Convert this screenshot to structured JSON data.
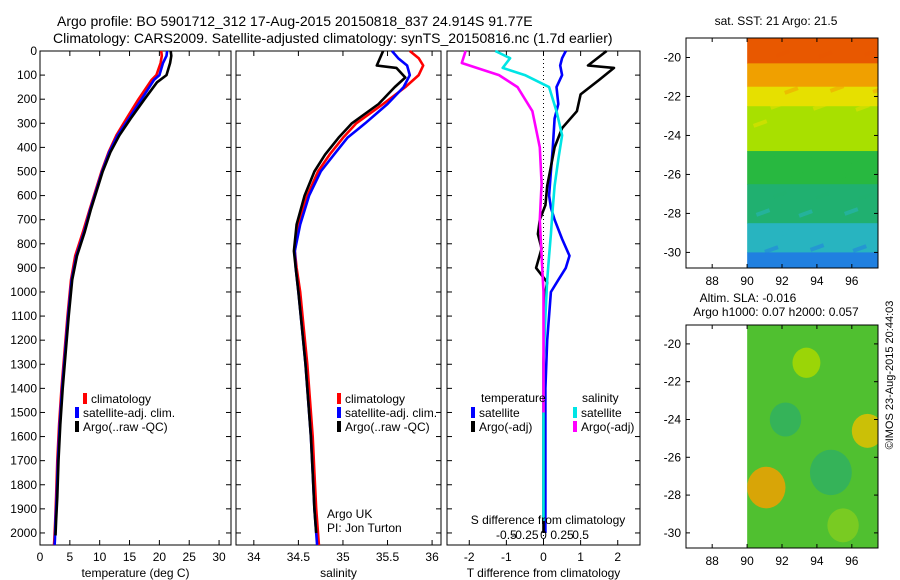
{
  "header": {
    "line1": "Argo profile: BO 5901712_312 17-Aug-2015 20150818_837 24.914S 91.77E",
    "line2": "Climatology: CARS2009. Satellite-adjusted climatology: synTS_20150816.nc (1.7d earlier)"
  },
  "colors": {
    "climatology": "#ff0000",
    "satellite": "#0000ff",
    "argo": "#000000",
    "sat_salinity": "#00e5e5",
    "argo_salinity": "#ff00ff"
  },
  "footer": {
    "credit": "©IMOS 23-Aug-2015 20:44:03"
  },
  "chart_data": [
    {
      "type": "line",
      "name": "temperature-profile",
      "xlabel": "temperature (deg C)",
      "ylabel": "",
      "xlim": [
        0,
        32
      ],
      "ylim": [
        2050,
        0
      ],
      "xticks": [
        "0",
        "5",
        "10",
        "15",
        "20",
        "25",
        "30"
      ],
      "yticks": [
        "0",
        "100",
        "200",
        "300",
        "400",
        "500",
        "600",
        "700",
        "800",
        "900",
        "1000",
        "1100",
        "1200",
        "1300",
        "1400",
        "1500",
        "1600",
        "1700",
        "1800",
        "1900",
        "2000"
      ],
      "legend": [
        "climatology",
        "satellite-adj. clim.",
        "Argo(..raw -QC)"
      ],
      "series": [
        {
          "name": "climatology",
          "color": "#ff0000",
          "x": [
            20.3,
            20.4,
            20.2,
            19.5,
            18.7,
            16.5,
            14.5,
            12.8,
            11.5,
            10.3,
            9.3,
            8.3,
            7.2,
            5.9,
            5.2,
            4.6,
            4.1,
            3.6,
            3.2,
            2.9,
            2.7,
            2.55,
            2.4,
            2.35
          ],
          "y": [
            0,
            20,
            50,
            100,
            120,
            200,
            280,
            350,
            420,
            500,
            580,
            660,
            750,
            850,
            950,
            1100,
            1250,
            1400,
            1550,
            1700,
            1850,
            1950,
            2030,
            2050
          ]
        },
        {
          "name": "satellite-adj. clim.",
          "color": "#0000ff",
          "x": [
            21.3,
            21.2,
            20.6,
            20.0,
            19.1,
            17.0,
            14.9,
            13.0,
            11.6,
            10.4,
            9.4,
            8.4,
            7.4,
            6.1,
            5.3,
            4.7,
            4.2,
            3.7,
            3.3,
            3.0,
            2.8,
            2.6,
            2.5,
            2.45
          ],
          "y": [
            0,
            20,
            50,
            100,
            120,
            200,
            280,
            350,
            420,
            500,
            580,
            660,
            750,
            850,
            950,
            1100,
            1250,
            1400,
            1550,
            1700,
            1850,
            1950,
            2030,
            2050
          ]
        },
        {
          "name": "Argo(..raw -QC)",
          "color": "#000000",
          "x": [
            21.9,
            22.0,
            21.8,
            21.2,
            19.6,
            17.5,
            15.2,
            13.3,
            11.8,
            10.5,
            9.5,
            8.5,
            7.5,
            6.2,
            5.4,
            4.8,
            4.3,
            3.8,
            3.4,
            3.1,
            2.9,
            2.7,
            2.6
          ],
          "y": [
            0,
            20,
            50,
            100,
            130,
            200,
            280,
            350,
            420,
            500,
            580,
            660,
            750,
            850,
            950,
            1100,
            1250,
            1400,
            1550,
            1700,
            1850,
            1950,
            2010
          ]
        }
      ]
    },
    {
      "type": "line",
      "name": "salinity-profile",
      "xlabel": "salinity",
      "xlim": [
        33.8,
        36.1
      ],
      "ylim": [
        2050,
        0
      ],
      "xticks": [
        "34",
        "34.5",
        "35",
        "35.5",
        "36"
      ],
      "legend": [
        "climatology",
        "satellite-adj. clim.",
        "Argo(..raw -QC)"
      ],
      "annotation": [
        "Argo UK",
        "PI: Jon Turton"
      ],
      "series": [
        {
          "name": "climatology",
          "color": "#ff0000",
          "x": [
            35.75,
            35.85,
            35.9,
            35.85,
            35.7,
            35.45,
            35.15,
            35.0,
            34.85,
            34.72,
            34.6,
            34.5,
            34.46,
            34.48,
            34.52,
            34.56,
            34.6,
            34.63,
            34.66,
            34.68,
            34.7,
            34.72,
            34.73
          ],
          "y": [
            0,
            30,
            60,
            100,
            150,
            220,
            300,
            360,
            430,
            500,
            600,
            720,
            830,
            900,
            1000,
            1150,
            1300,
            1450,
            1600,
            1750,
            1900,
            2000,
            2050
          ]
        },
        {
          "name": "satellite-adj. clim.",
          "color": "#0000ff",
          "x": [
            35.55,
            35.62,
            35.72,
            35.75,
            35.68,
            35.5,
            35.25,
            35.05,
            34.9,
            34.75,
            34.62,
            34.52,
            34.46,
            34.47,
            34.5,
            34.54,
            34.58,
            34.61,
            34.64,
            34.66,
            34.68,
            34.7,
            34.71
          ],
          "y": [
            0,
            30,
            60,
            100,
            150,
            220,
            300,
            360,
            430,
            500,
            600,
            720,
            830,
            900,
            1000,
            1150,
            1300,
            1450,
            1600,
            1750,
            1900,
            2000,
            2050
          ]
        },
        {
          "name": "Argo(..raw -QC)",
          "color": "#000000",
          "x": [
            35.45,
            35.38,
            35.6,
            35.7,
            35.58,
            35.4,
            35.1,
            34.95,
            34.8,
            34.68,
            34.57,
            34.48,
            34.45,
            34.47,
            34.5,
            34.54,
            34.58,
            34.61,
            34.64,
            34.66,
            34.68,
            34.7
          ],
          "y": [
            0,
            60,
            70,
            110,
            150,
            220,
            300,
            360,
            430,
            500,
            600,
            720,
            830,
            900,
            1000,
            1150,
            1300,
            1450,
            1600,
            1750,
            1900,
            2000
          ]
        }
      ]
    },
    {
      "type": "line",
      "name": "difference-profile",
      "xlabel": "T difference from climatology",
      "xlabel2": "S difference from climatology",
      "xlim": [
        -2.6,
        2.6
      ],
      "ylim": [
        2050,
        0
      ],
      "xticks": [
        "-2",
        "-1",
        "0",
        "1",
        "2"
      ],
      "xticks_salinity": [
        "-0.5",
        "-0.25",
        "0",
        "0.25",
        "0.5"
      ],
      "legend_titles": [
        "temperature",
        "salinity"
      ],
      "legend": [
        "satellite",
        "Argo(-adj)",
        "satellite",
        "Argo(-adj)"
      ],
      "series": [
        {
          "name": "T satellite",
          "color": "#0000ff",
          "x": [
            0.6,
            0.5,
            0.45,
            0.5,
            0.35,
            0.4,
            0.3,
            0.25,
            0.2,
            0.15,
            0.2,
            0.3,
            0.5,
            0.7,
            0.6,
            0.4,
            0.2,
            0.1,
            0.05,
            0.05,
            0.05,
            0.05
          ],
          "y": [
            0,
            30,
            60,
            100,
            150,
            220,
            280,
            400,
            500,
            600,
            650,
            700,
            780,
            850,
            900,
            950,
            1000,
            1200,
            1400,
            1600,
            1800,
            2000
          ]
        },
        {
          "name": "T Argo(-adj)",
          "color": "#000000",
          "x": [
            1.7,
            1.2,
            1.9,
            1.5,
            1.0,
            0.9,
            0.5,
            0.3,
            0.2,
            0.1,
            0.05,
            -0.1,
            -0.15,
            -0.05,
            -0.2,
            0.1,
            0.05,
            0.0,
            0.0,
            0.0
          ],
          "y": [
            0,
            60,
            70,
            120,
            180,
            250,
            320,
            400,
            480,
            560,
            640,
            700,
            760,
            820,
            900,
            960,
            1000,
            1300,
            1600,
            2000
          ]
        },
        {
          "name": "S satellite",
          "color": "#00e5e5",
          "x": [
            -1.3,
            -0.9,
            -1.1,
            -0.5,
            0.15,
            0.35,
            0.5,
            0.4,
            0.3,
            0.25,
            0.2,
            0.15,
            0.1,
            0.05,
            0.0,
            0.0,
            0.0
          ],
          "y": [
            0,
            30,
            70,
            100,
            150,
            250,
            350,
            450,
            560,
            650,
            760,
            850,
            950,
            1100,
            1300,
            1600,
            1950
          ]
        },
        {
          "name": "S Argo(-adj)",
          "color": "#ff00ff",
          "x": [
            -2.1,
            -2.2,
            -1.8,
            -1.2,
            -0.7,
            -0.3,
            -0.1,
            -0.05,
            -0.1,
            -0.05,
            0.0,
            0.0,
            0.0
          ],
          "y": [
            0,
            50,
            70,
            100,
            150,
            250,
            400,
            550,
            700,
            850,
            1000,
            1200,
            1500
          ]
        }
      ]
    },
    {
      "type": "heatmap",
      "name": "sst-map",
      "title": "sat. SST: 21 Argo: 21.5",
      "xlim": [
        86.5,
        97.5
      ],
      "ylim": [
        -30.8,
        -19
      ],
      "xticks": [
        "88",
        "90",
        "92",
        "94",
        "96"
      ],
      "yticks": [
        "-20",
        "-22",
        "-24",
        "-26",
        "-28",
        "-30"
      ],
      "data_lon_start": 90,
      "bands": [
        {
          "lat_top": -19.0,
          "lat_bottom": -20.3,
          "color": "#e85800"
        },
        {
          "lat_top": -20.3,
          "lat_bottom": -21.5,
          "color": "#f0a000"
        },
        {
          "lat_top": -21.5,
          "lat_bottom": -22.5,
          "color": "#e6e000"
        },
        {
          "lat_top": -22.5,
          "lat_bottom": -24.8,
          "color": "#a8e000"
        },
        {
          "lat_top": -24.8,
          "lat_bottom": -26.5,
          "color": "#28b840"
        },
        {
          "lat_top": -26.5,
          "lat_bottom": -28.5,
          "color": "#20b070"
        },
        {
          "lat_top": -28.5,
          "lat_bottom": -30.0,
          "color": "#28b4c0"
        },
        {
          "lat_top": -30.0,
          "lat_bottom": -30.8,
          "color": "#2080e0"
        }
      ]
    },
    {
      "type": "heatmap",
      "name": "sla-map",
      "title": "Altim. SLA: -0.016",
      "subtitle": "Argo h1000: 0.07 h2000: 0.057",
      "xlim": [
        86.5,
        97.5
      ],
      "ylim": [
        -30.8,
        -19
      ],
      "xticks": [
        "88",
        "90",
        "92",
        "94",
        "96"
      ],
      "yticks": [
        "-20",
        "-22",
        "-24",
        "-26",
        "-28",
        "-30"
      ],
      "data_lon_start": 90,
      "background": "#50c030",
      "blobs": [
        {
          "lon": 91.1,
          "lat": -27.6,
          "r": 1.1,
          "color": "#f0a000"
        },
        {
          "lon": 96.9,
          "lat": -24.6,
          "r": 0.9,
          "color": "#e0c000"
        },
        {
          "lon": 93.4,
          "lat": -21.0,
          "r": 0.8,
          "color": "#a8d800"
        },
        {
          "lon": 94.8,
          "lat": -26.8,
          "r": 1.2,
          "color": "#30b060"
        },
        {
          "lon": 92.2,
          "lat": -24.0,
          "r": 0.9,
          "color": "#30b060"
        },
        {
          "lon": 95.5,
          "lat": -29.6,
          "r": 0.9,
          "color": "#80cc20"
        }
      ]
    }
  ]
}
